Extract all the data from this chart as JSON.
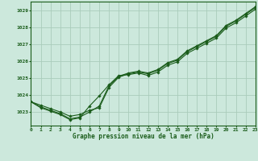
{
  "title": "Graphe pression niveau de la mer (hPa)",
  "background_color": "#cce8dc",
  "grid_color": "#aaccbb",
  "line_color": "#1a5c1a",
  "x_min": 0,
  "x_max": 23,
  "y_min": 1022.2,
  "y_max": 1029.5,
  "y_ticks": [
    1023,
    1024,
    1025,
    1026,
    1027,
    1028,
    1029
  ],
  "x_ticks": [
    0,
    1,
    2,
    3,
    4,
    5,
    6,
    7,
    8,
    9,
    10,
    11,
    12,
    13,
    14,
    15,
    16,
    17,
    18,
    19,
    20,
    21,
    22,
    23
  ],
  "series1_x": [
    0,
    1,
    2,
    3,
    4,
    5,
    6,
    7,
    8,
    9,
    10,
    11,
    12,
    13,
    14,
    15,
    16,
    17,
    18,
    19,
    20,
    21,
    22,
    23
  ],
  "series1_y": [
    1023.6,
    1023.4,
    1023.2,
    1023.0,
    1022.75,
    1022.85,
    1023.1,
    1023.25,
    1024.45,
    1025.05,
    1025.25,
    1025.35,
    1025.25,
    1025.45,
    1025.85,
    1026.05,
    1026.55,
    1026.85,
    1027.15,
    1027.45,
    1028.05,
    1028.35,
    1028.75,
    1029.15
  ],
  "series2_x": [
    0,
    1,
    2,
    3,
    4,
    5,
    6,
    7,
    8,
    9,
    10,
    11,
    12,
    13,
    14,
    15,
    16,
    17,
    18,
    19,
    20,
    21,
    22,
    23
  ],
  "series2_y": [
    1023.6,
    1023.3,
    1023.1,
    1022.9,
    1022.6,
    1022.7,
    1023.0,
    1023.35,
    1024.55,
    1025.1,
    1025.3,
    1025.4,
    1025.3,
    1025.5,
    1025.9,
    1026.1,
    1026.6,
    1026.9,
    1027.2,
    1027.5,
    1028.1,
    1028.4,
    1028.8,
    1029.2
  ],
  "series3_x": [
    0,
    1,
    2,
    3,
    4,
    5,
    6,
    7,
    8,
    9,
    10,
    11,
    12,
    13,
    14,
    15,
    16,
    17,
    18,
    19,
    20,
    21,
    22,
    23
  ],
  "series3_y": [
    1023.6,
    1023.25,
    1023.05,
    1022.85,
    1022.55,
    1022.65,
    1023.35,
    1023.95,
    1024.6,
    1025.15,
    1025.2,
    1025.3,
    1025.15,
    1025.35,
    1025.75,
    1025.95,
    1026.45,
    1026.75,
    1027.05,
    1027.35,
    1027.95,
    1028.25,
    1028.65,
    1029.05
  ]
}
